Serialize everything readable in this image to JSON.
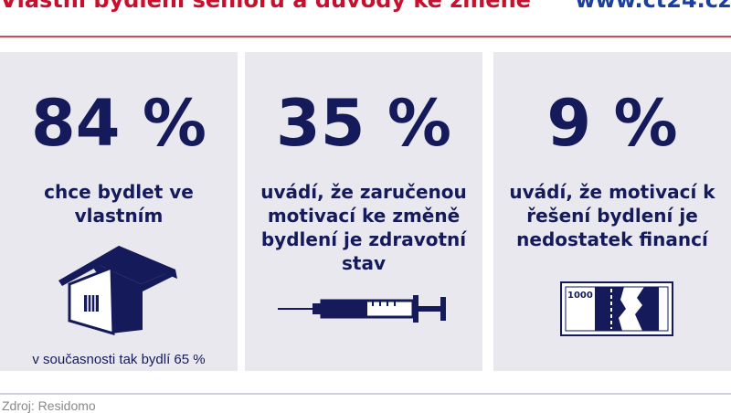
{
  "header": {
    "title": "Vlastní bydlení seniorů a důvody ke změně",
    "url": "www.ct24.cz"
  },
  "colors": {
    "title": "#c8102e",
    "url": "#1a3fa0",
    "navy": "#151a5a",
    "panel": "#e8e8ee"
  },
  "panels": [
    {
      "value": "84 %",
      "text": "chce bydlet ve vlastním",
      "note": "v současnosti tak bydlí 65 %",
      "icon": "house-icon"
    },
    {
      "value": "35 %",
      "text": "uvádí, že zaručenou motivací ke změně bydlení je zdravotní stav",
      "icon": "syringe-icon"
    },
    {
      "value": "9 %",
      "text": "uvádí, že motivací k řešení bydlení je nedostatek financí",
      "icon": "banknote-icon",
      "banknote_label": "1000"
    }
  ],
  "footer": {
    "source": "Zdroj: Residomo"
  }
}
